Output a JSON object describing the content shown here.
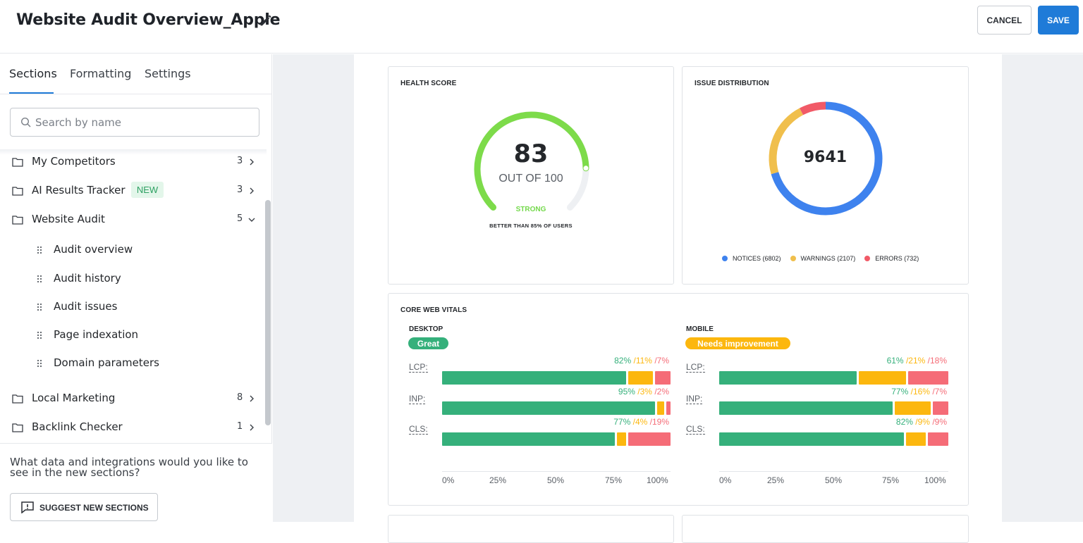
{
  "header": {
    "title": "Website Audit Overview_Apple",
    "cancel_label": "CANCEL",
    "save_label": "SAVE"
  },
  "sidebar": {
    "tabs": [
      {
        "label": "Sections"
      },
      {
        "label": "Formatting"
      },
      {
        "label": "Settings"
      }
    ],
    "search": {
      "placeholder": "Search by name"
    },
    "items": [
      {
        "label": "My Competitors",
        "count": "3"
      },
      {
        "label": "AI Results Tracker",
        "count": "3",
        "badge": "NEW"
      },
      {
        "label": "Website Audit",
        "count": "5"
      },
      {
        "label": "Local Marketing",
        "count": "8"
      },
      {
        "label": "Backlink Checker",
        "count": "1"
      }
    ],
    "sub_items": [
      {
        "label": "Audit overview"
      },
      {
        "label": "Audit history"
      },
      {
        "label": "Audit issues"
      },
      {
        "label": "Page indexation"
      },
      {
        "label": "Domain parameters"
      }
    ],
    "footer": {
      "question": "What data and integrations would you like to see in the new sections?",
      "suggest_label": "SUGGEST NEW SECTIONS"
    }
  },
  "health_score": {
    "title": "HEALTH SCORE",
    "score": "83",
    "out_of": "OUT OF 100",
    "rating": "STRONG",
    "comparison": "BETTER THAN 85% OF USERS",
    "score_value": 83,
    "max_value": 100,
    "color": "#7ddb4a"
  },
  "issue_distribution": {
    "title": "ISSUE DISTRIBUTION",
    "total": "9641",
    "legend": [
      {
        "label": "NOTICES (6802)",
        "value": 6802,
        "color": "#3e82ee"
      },
      {
        "label": "WARNINGS (2107)",
        "value": 2107,
        "color": "#f0bf4c"
      },
      {
        "label": "ERRORS (732)",
        "value": 732,
        "color": "#f15a67"
      }
    ]
  },
  "core_web_vitals": {
    "title": "CORE WEB VITALS",
    "colors": {
      "good": "#35b07b",
      "needs": "#fcb70e",
      "poor": "#f56c77"
    },
    "axis_ticks": [
      "0%",
      "25%",
      "50%",
      "75%",
      "100%"
    ],
    "desktop": {
      "heading": "DESKTOP",
      "status": "Great",
      "status_color": "#35b07b",
      "metrics": [
        {
          "name": "LCP:",
          "good": 82,
          "needs": 11,
          "poor": 7,
          "good_label": "82%",
          "needs_label": "/11%",
          "poor_label": "/7%"
        },
        {
          "name": "INP:",
          "good": 95,
          "needs": 3,
          "poor": 2,
          "good_label": "95%",
          "needs_label": "/3%",
          "poor_label": "/2%"
        },
        {
          "name": "CLS:",
          "good": 77,
          "needs": 4,
          "poor": 19,
          "good_label": "77%",
          "needs_label": "/4%",
          "poor_label": "/19%"
        }
      ]
    },
    "mobile": {
      "heading": "MOBILE",
      "status": "Needs improvement",
      "status_color": "#fcb70e",
      "metrics": [
        {
          "name": "LCP:",
          "good": 61,
          "needs": 21,
          "poor": 18,
          "good_label": "61%",
          "needs_label": "/21%",
          "poor_label": "/18%"
        },
        {
          "name": "INP:",
          "good": 77,
          "needs": 16,
          "poor": 7,
          "good_label": "77%",
          "needs_label": "/16%",
          "poor_label": "/7%"
        },
        {
          "name": "CLS:",
          "good": 82,
          "needs": 9,
          "poor": 9,
          "good_label": "82%",
          "needs_label": "/9%",
          "poor_label": "/9%"
        }
      ]
    }
  },
  "chart_data": [
    {
      "type": "pie",
      "title": "ISSUE DISTRIBUTION",
      "categories": [
        "NOTICES",
        "WARNINGS",
        "ERRORS"
      ],
      "values": [
        6802,
        2107,
        732
      ]
    },
    {
      "type": "bar",
      "title": "CORE WEB VITALS",
      "subtitle": "DESKTOP",
      "categories": [
        "LCP:",
        "INP:",
        "CLS:"
      ],
      "series": [
        {
          "values": [
            82,
            95,
            77
          ]
        },
        {
          "values": [
            11,
            3,
            4
          ]
        },
        {
          "values": [
            7,
            2,
            19
          ]
        }
      ],
      "xlim": [
        0,
        100
      ]
    },
    {
      "type": "bar",
      "title": "CORE WEB VITALS",
      "subtitle": "MOBILE",
      "categories": [
        "LCP:",
        "INP:",
        "CLS:"
      ],
      "series": [
        {
          "values": [
            61,
            77,
            82
          ]
        },
        {
          "values": [
            21,
            16,
            9
          ]
        },
        {
          "values": [
            18,
            7,
            9
          ]
        }
      ],
      "xlim": [
        0,
        100
      ]
    }
  ]
}
